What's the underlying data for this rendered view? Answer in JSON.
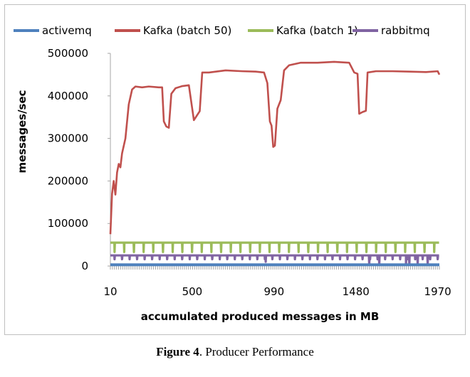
{
  "caption": {
    "label": "Figure 4",
    "text": ". Producer Performance"
  },
  "chart_data": {
    "type": "line",
    "xlabel": "accumulated produced messages in MB",
    "ylabel": "messages/sec",
    "ylim": [
      0,
      500000
    ],
    "yticks": [
      0,
      100000,
      200000,
      300000,
      400000,
      500000
    ],
    "xlim": [
      10,
      1980
    ],
    "xticks": [
      10,
      500,
      990,
      1480,
      1970
    ],
    "grid": false,
    "legend_position": "top",
    "series": [
      {
        "name": "activemq",
        "color": "#4f81bd",
        "points": [
          [
            10,
            3000
          ],
          [
            1980,
            3000
          ]
        ]
      },
      {
        "name": "Kafka (batch 50)",
        "color": "#c0504d",
        "points": [
          [
            10,
            75000
          ],
          [
            20,
            170000
          ],
          [
            30,
            200000
          ],
          [
            40,
            168000
          ],
          [
            50,
            220000
          ],
          [
            60,
            240000
          ],
          [
            70,
            232000
          ],
          [
            80,
            265000
          ],
          [
            100,
            300000
          ],
          [
            120,
            380000
          ],
          [
            140,
            415000
          ],
          [
            160,
            422000
          ],
          [
            200,
            420000
          ],
          [
            240,
            422000
          ],
          [
            300,
            420000
          ],
          [
            320,
            420000
          ],
          [
            330,
            340000
          ],
          [
            345,
            328000
          ],
          [
            360,
            325000
          ],
          [
            375,
            405000
          ],
          [
            400,
            418000
          ],
          [
            440,
            423000
          ],
          [
            480,
            425000
          ],
          [
            510,
            343000
          ],
          [
            545,
            364000
          ],
          [
            560,
            455000
          ],
          [
            600,
            455000
          ],
          [
            700,
            460000
          ],
          [
            800,
            458000
          ],
          [
            880,
            457000
          ],
          [
            930,
            455000
          ],
          [
            950,
            430000
          ],
          [
            965,
            340000
          ],
          [
            975,
            330000
          ],
          [
            985,
            280000
          ],
          [
            995,
            283000
          ],
          [
            1010,
            370000
          ],
          [
            1030,
            390000
          ],
          [
            1050,
            460000
          ],
          [
            1080,
            472000
          ],
          [
            1150,
            478000
          ],
          [
            1250,
            478000
          ],
          [
            1350,
            480000
          ],
          [
            1440,
            478000
          ],
          [
            1470,
            455000
          ],
          [
            1490,
            452000
          ],
          [
            1500,
            358000
          ],
          [
            1520,
            362000
          ],
          [
            1540,
            365000
          ],
          [
            1550,
            455000
          ],
          [
            1600,
            458000
          ],
          [
            1700,
            458000
          ],
          [
            1800,
            457000
          ],
          [
            1900,
            456000
          ],
          [
            1970,
            458000
          ],
          [
            1980,
            450000
          ]
        ]
      },
      {
        "name": "Kafka (batch 1)",
        "color": "#9bbb59",
        "baseline": 55000,
        "dip_value": 33000,
        "dip_every": 58
      },
      {
        "name": "rabbitmq",
        "color": "#8064a2",
        "baseline": 25000,
        "dip_value": 16000,
        "dip_every": 45,
        "deep_dips": [
          [
            940,
            10000
          ],
          [
            1560,
            3000
          ],
          [
            1620,
            3000
          ],
          [
            1780,
            3000
          ],
          [
            1800,
            3000
          ],
          [
            1850,
            3000
          ],
          [
            1910,
            3000
          ]
        ]
      }
    ]
  }
}
